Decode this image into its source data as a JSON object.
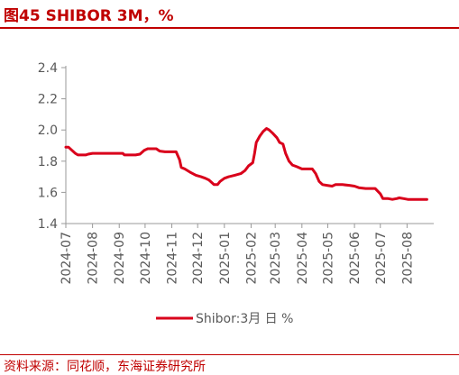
{
  "title": "图45  SHIBOR 3M，%",
  "source": "资料来源：同花顺，东海证券研究所",
  "colors": {
    "accent": "#c00000",
    "series": "#d9001b",
    "axis": "#999999",
    "text": "#595959"
  },
  "chart_data": {
    "type": "line",
    "title": "",
    "xlabel": "",
    "ylabel": "",
    "ylim": [
      1.4,
      2.4
    ],
    "yticks": [
      "1.4",
      "1.6",
      "1.8",
      "2.0",
      "2.2",
      "2.4"
    ],
    "xticks": [
      "2024-07",
      "2024-08",
      "2024-09",
      "2024-10",
      "2024-11",
      "2024-12",
      "2025-01",
      "2025-02",
      "2025-03",
      "2025-04",
      "2025-05",
      "2025-06",
      "2025-07",
      "2025-08"
    ],
    "grid": false,
    "legend_position": "bottom",
    "series": [
      {
        "name": "Shibor:3月 日 %",
        "points": [
          [
            "2024-07-01",
            1.89
          ],
          [
            "2024-07-04",
            1.89
          ],
          [
            "2024-07-08",
            1.87
          ],
          [
            "2024-07-12",
            1.85
          ],
          [
            "2024-07-15",
            1.84
          ],
          [
            "2024-07-19",
            1.84
          ],
          [
            "2024-07-24",
            1.84
          ],
          [
            "2024-07-27",
            1.845
          ],
          [
            "2024-08-01",
            1.85
          ],
          [
            "2024-08-15",
            1.85
          ],
          [
            "2024-08-31",
            1.85
          ],
          [
            "2024-09-05",
            1.85
          ],
          [
            "2024-09-07",
            1.84
          ],
          [
            "2024-09-20",
            1.84
          ],
          [
            "2024-09-25",
            1.845
          ],
          [
            "2024-09-30",
            1.87
          ],
          [
            "2024-10-04",
            1.88
          ],
          [
            "2024-10-14",
            1.88
          ],
          [
            "2024-10-18",
            1.865
          ],
          [
            "2024-10-24",
            1.86
          ],
          [
            "2024-11-01",
            1.86
          ],
          [
            "2024-11-06",
            1.86
          ],
          [
            "2024-11-10",
            1.81
          ],
          [
            "2024-11-12",
            1.76
          ],
          [
            "2024-11-16",
            1.75
          ],
          [
            "2024-11-22",
            1.73
          ],
          [
            "2024-11-29",
            1.71
          ],
          [
            "2024-12-05",
            1.7
          ],
          [
            "2024-12-10",
            1.69
          ],
          [
            "2024-12-14",
            1.68
          ],
          [
            "2024-12-18",
            1.66
          ],
          [
            "2024-12-20",
            1.65
          ],
          [
            "2024-12-24",
            1.65
          ],
          [
            "2024-12-27",
            1.67
          ],
          [
            "2025-01-01",
            1.69
          ],
          [
            "2025-01-06",
            1.7
          ],
          [
            "2025-01-13",
            1.71
          ],
          [
            "2025-01-20",
            1.72
          ],
          [
            "2025-01-25",
            1.74
          ],
          [
            "2025-01-29",
            1.77
          ],
          [
            "2025-02-03",
            1.79
          ],
          [
            "2025-02-05",
            1.85
          ],
          [
            "2025-02-07",
            1.92
          ],
          [
            "2025-02-11",
            1.96
          ],
          [
            "2025-02-15",
            1.99
          ],
          [
            "2025-02-19",
            2.01
          ],
          [
            "2025-02-22",
            2.0
          ],
          [
            "2025-02-26",
            1.98
          ],
          [
            "2025-03-03",
            1.95
          ],
          [
            "2025-03-06",
            1.92
          ],
          [
            "2025-03-10",
            1.91
          ],
          [
            "2025-03-13",
            1.85
          ],
          [
            "2025-03-17",
            1.8
          ],
          [
            "2025-03-21",
            1.775
          ],
          [
            "2025-03-26",
            1.765
          ],
          [
            "2025-04-01",
            1.75
          ],
          [
            "2025-04-08",
            1.75
          ],
          [
            "2025-04-13",
            1.75
          ],
          [
            "2025-04-17",
            1.72
          ],
          [
            "2025-04-21",
            1.67
          ],
          [
            "2025-04-25",
            1.65
          ],
          [
            "2025-04-30",
            1.645
          ],
          [
            "2025-05-06",
            1.64
          ],
          [
            "2025-05-10",
            1.65
          ],
          [
            "2025-05-18",
            1.65
          ],
          [
            "2025-05-26",
            1.645
          ],
          [
            "2025-06-01",
            1.64
          ],
          [
            "2025-06-06",
            1.63
          ],
          [
            "2025-06-14",
            1.625
          ],
          [
            "2025-06-25",
            1.625
          ],
          [
            "2025-07-01",
            1.59
          ],
          [
            "2025-07-04",
            1.56
          ],
          [
            "2025-07-10",
            1.56
          ],
          [
            "2025-07-15",
            1.555
          ],
          [
            "2025-07-20",
            1.56
          ],
          [
            "2025-07-23",
            1.565
          ],
          [
            "2025-07-28",
            1.56
          ],
          [
            "2025-08-02",
            1.555
          ],
          [
            "2025-08-09",
            1.555
          ],
          [
            "2025-08-17",
            1.555
          ],
          [
            "2025-08-24",
            1.555
          ]
        ]
      }
    ]
  }
}
